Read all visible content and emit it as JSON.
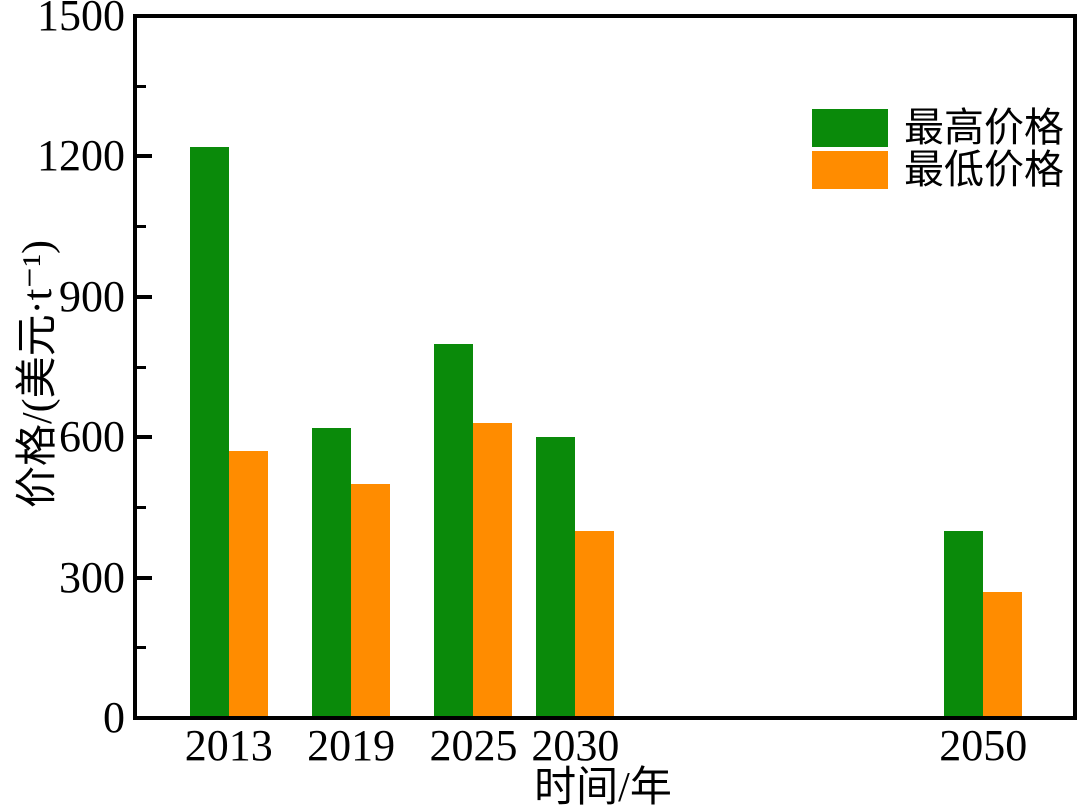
{
  "chart_data": {
    "type": "bar",
    "title": "",
    "xlabel": "时间/年",
    "ylabel": "价格/(美元·t⁻¹)",
    "x": [
      2013,
      2019,
      2025,
      2030,
      2050
    ],
    "x_tick_labels": [
      "2013",
      "2019",
      "2025",
      "2030",
      "2050"
    ],
    "x_axis": {
      "min": 2008.5,
      "max": 2054.5
    },
    "y_axis": {
      "min": 0,
      "max": 1500,
      "major_step": 300,
      "minor_step": 150,
      "tick_labels": [
        "0",
        "300",
        "600",
        "900",
        "1200",
        "1500"
      ]
    },
    "series": [
      {
        "id": "max-price",
        "name": "最高价格",
        "color": "#0a8a0a",
        "values": [
          1220,
          620,
          800,
          600,
          400
        ]
      },
      {
        "id": "min-price",
        "name": "最低价格",
        "color": "#ff8c00",
        "values": [
          570,
          500,
          630,
          400,
          270
        ]
      }
    ],
    "legend_position": "top-right",
    "grid": false,
    "frame_color": "#000000",
    "background_color": "#ffffff"
  }
}
